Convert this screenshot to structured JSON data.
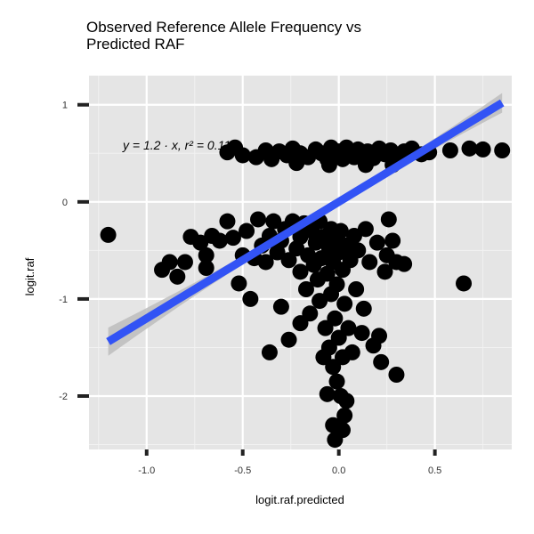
{
  "chart_data": {
    "type": "scatter",
    "title": "Observed Reference Allele Frequency vs\n Predicted RAF",
    "xlabel": "logit.raf.predicted",
    "ylabel": "logit.raf",
    "xlim": [
      -1.3,
      0.9
    ],
    "ylim": [
      -2.55,
      1.3
    ],
    "x_ticks": [
      -1.0,
      -0.5,
      0.0,
      0.5
    ],
    "x_tick_labels": [
      "-1.0",
      "-0.5",
      "0.0",
      "0.5"
    ],
    "y_ticks": [
      1,
      0,
      -1,
      -2
    ],
    "y_tick_labels": [
      "1",
      "0",
      "-1",
      "-2"
    ],
    "grid": true,
    "annotation": "y = 1.2 · x,  r² = 0.116",
    "fit_line": {
      "type": "linear",
      "slope": 1.2,
      "intercept": 0,
      "r_squared": 0.116,
      "x_range": [
        -1.2,
        0.85
      ],
      "color": "#3253f5",
      "band_color": "#bdbdbd"
    },
    "point_color": "#000000",
    "panel_background": "#e5e5e5",
    "points": [
      {
        "x": -1.2,
        "y": -0.34
      },
      {
        "x": -0.92,
        "y": -0.7
      },
      {
        "x": -0.88,
        "y": -0.62
      },
      {
        "x": -0.84,
        "y": -0.77
      },
      {
        "x": -0.8,
        "y": -0.62
      },
      {
        "x": -0.77,
        "y": -0.36
      },
      {
        "x": -0.72,
        "y": -0.42
      },
      {
        "x": -0.69,
        "y": -0.55
      },
      {
        "x": -0.69,
        "y": -0.68
      },
      {
        "x": -0.66,
        "y": -0.35
      },
      {
        "x": -0.62,
        "y": -0.4
      },
      {
        "x": -0.58,
        "y": -0.2
      },
      {
        "x": -0.55,
        "y": -0.37
      },
      {
        "x": -0.52,
        "y": -0.84
      },
      {
        "x": -0.5,
        "y": -0.55
      },
      {
        "x": -0.48,
        "y": -0.3
      },
      {
        "x": -0.46,
        "y": -1.0
      },
      {
        "x": -0.44,
        "y": -0.58
      },
      {
        "x": -0.42,
        "y": -0.18
      },
      {
        "x": -0.4,
        "y": -0.45
      },
      {
        "x": -0.38,
        "y": -0.62
      },
      {
        "x": -0.36,
        "y": -0.35
      },
      {
        "x": -0.34,
        "y": -0.2
      },
      {
        "x": -0.32,
        "y": -0.52
      },
      {
        "x": -0.3,
        "y": -0.4
      },
      {
        "x": -0.3,
        "y": -1.08
      },
      {
        "x": -0.28,
        "y": -0.28
      },
      {
        "x": -0.26,
        "y": -0.6
      },
      {
        "x": -0.24,
        "y": -0.2
      },
      {
        "x": -0.22,
        "y": -0.48
      },
      {
        "x": -0.2,
        "y": -0.36
      },
      {
        "x": -0.2,
        "y": -0.72
      },
      {
        "x": -0.18,
        "y": -0.22
      },
      {
        "x": -0.17,
        "y": -0.9
      },
      {
        "x": -0.16,
        "y": -0.55
      },
      {
        "x": -0.15,
        "y": -1.15
      },
      {
        "x": -0.14,
        "y": -0.3
      },
      {
        "x": -0.13,
        "y": -0.65
      },
      {
        "x": -0.12,
        "y": -0.42
      },
      {
        "x": -0.11,
        "y": -0.8
      },
      {
        "x": -0.1,
        "y": -0.2
      },
      {
        "x": -0.1,
        "y": -1.02
      },
      {
        "x": -0.09,
        "y": -0.58
      },
      {
        "x": -0.08,
        "y": -0.36
      },
      {
        "x": -0.07,
        "y": -1.3
      },
      {
        "x": -0.06,
        "y": -0.74
      },
      {
        "x": -0.05,
        "y": -0.48
      },
      {
        "x": -0.05,
        "y": -1.5
      },
      {
        "x": -0.04,
        "y": -0.28
      },
      {
        "x": -0.04,
        "y": -0.95
      },
      {
        "x": -0.03,
        "y": -0.62
      },
      {
        "x": -0.03,
        "y": -1.7
      },
      {
        "x": -0.02,
        "y": -0.4
      },
      {
        "x": -0.02,
        "y": -1.2
      },
      {
        "x": -0.01,
        "y": -0.85
      },
      {
        "x": -0.01,
        "y": -1.85
      },
      {
        "x": 0.0,
        "y": -0.52
      },
      {
        "x": 0.0,
        "y": -1.4
      },
      {
        "x": 0.01,
        "y": -0.3
      },
      {
        "x": 0.01,
        "y": -2.0
      },
      {
        "x": 0.02,
        "y": -0.7
      },
      {
        "x": 0.02,
        "y": -1.6
      },
      {
        "x": 0.03,
        "y": -1.05
      },
      {
        "x": 0.03,
        "y": -2.2
      },
      {
        "x": 0.04,
        "y": -0.45
      },
      {
        "x": 0.05,
        "y": -1.3
      },
      {
        "x": 0.06,
        "y": -0.6
      },
      {
        "x": 0.07,
        "y": -1.55
      },
      {
        "x": 0.08,
        "y": -0.35
      },
      {
        "x": 0.09,
        "y": -0.9
      },
      {
        "x": 0.1,
        "y": -0.5
      },
      {
        "x": 0.12,
        "y": -1.35
      },
      {
        "x": 0.14,
        "y": -0.28
      },
      {
        "x": 0.16,
        "y": -0.62
      },
      {
        "x": 0.18,
        "y": -1.48
      },
      {
        "x": 0.2,
        "y": -0.42
      },
      {
        "x": 0.22,
        "y": -1.65
      },
      {
        "x": 0.25,
        "y": -0.55
      },
      {
        "x": 0.28,
        "y": -0.4
      },
      {
        "x": 0.3,
        "y": -0.62
      },
      {
        "x": 0.34,
        "y": -0.64
      },
      {
        "x": -0.06,
        "y": -1.98
      },
      {
        "x": -0.03,
        "y": -2.3
      },
      {
        "x": 0.02,
        "y": -2.35
      },
      {
        "x": -0.02,
        "y": -2.45
      },
      {
        "x": 0.04,
        "y": -2.05
      },
      {
        "x": -0.08,
        "y": -1.6
      },
      {
        "x": 0.13,
        "y": -1.1
      },
      {
        "x": 0.21,
        "y": -1.38
      },
      {
        "x": -0.36,
        "y": -1.55
      },
      {
        "x": -0.26,
        "y": -1.42
      },
      {
        "x": 0.3,
        "y": -1.78
      },
      {
        "x": -0.2,
        "y": -1.25
      },
      {
        "x": 0.65,
        "y": -0.84
      },
      {
        "x": 0.26,
        "y": -0.18
      },
      {
        "x": 0.24,
        "y": -0.72
      },
      {
        "x": -0.31,
        "y": 0.52
      },
      {
        "x": -0.27,
        "y": 0.48
      },
      {
        "x": -0.24,
        "y": 0.55
      },
      {
        "x": -0.2,
        "y": 0.5
      },
      {
        "x": -0.16,
        "y": 0.46
      },
      {
        "x": -0.12,
        "y": 0.54
      },
      {
        "x": -0.09,
        "y": 0.5
      },
      {
        "x": -0.06,
        "y": 0.44
      },
      {
        "x": -0.04,
        "y": 0.56
      },
      {
        "x": -0.02,
        "y": 0.48
      },
      {
        "x": 0.0,
        "y": 0.52
      },
      {
        "x": 0.02,
        "y": 0.44
      },
      {
        "x": 0.04,
        "y": 0.56
      },
      {
        "x": 0.06,
        "y": 0.5
      },
      {
        "x": 0.08,
        "y": 0.46
      },
      {
        "x": 0.1,
        "y": 0.54
      },
      {
        "x": 0.12,
        "y": 0.48
      },
      {
        "x": 0.15,
        "y": 0.52
      },
      {
        "x": 0.18,
        "y": 0.45
      },
      {
        "x": 0.21,
        "y": 0.55
      },
      {
        "x": 0.24,
        "y": 0.49
      },
      {
        "x": 0.27,
        "y": 0.53
      },
      {
        "x": 0.3,
        "y": 0.47
      },
      {
        "x": 0.34,
        "y": 0.52
      },
      {
        "x": 0.38,
        "y": 0.55
      },
      {
        "x": 0.43,
        "y": 0.49
      },
      {
        "x": 0.47,
        "y": 0.51
      },
      {
        "x": -0.58,
        "y": 0.51
      },
      {
        "x": -0.54,
        "y": 0.56
      },
      {
        "x": -0.5,
        "y": 0.48
      },
      {
        "x": -0.43,
        "y": 0.46
      },
      {
        "x": -0.38,
        "y": 0.53
      },
      {
        "x": -0.35,
        "y": 0.44
      },
      {
        "x": 0.58,
        "y": 0.53
      },
      {
        "x": 0.68,
        "y": 0.55
      },
      {
        "x": 0.75,
        "y": 0.54
      },
      {
        "x": 0.85,
        "y": 0.53
      },
      {
        "x": -0.05,
        "y": 0.38
      },
      {
        "x": 0.14,
        "y": 0.38
      },
      {
        "x": -0.22,
        "y": 0.4
      },
      {
        "x": 0.28,
        "y": 0.38
      }
    ]
  }
}
